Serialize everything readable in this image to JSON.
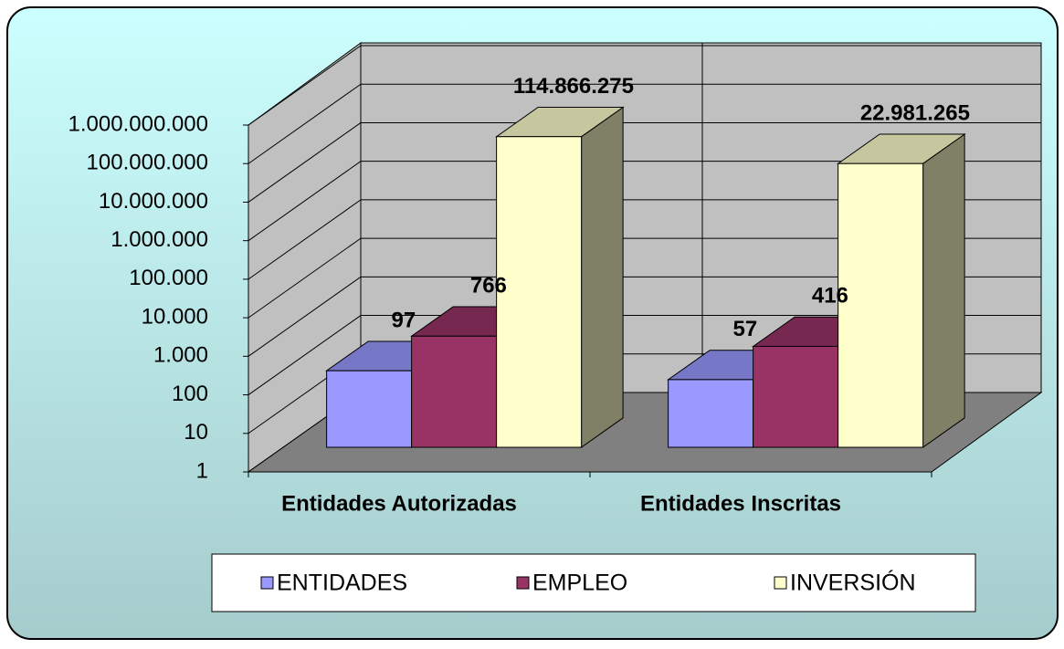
{
  "chart_data": {
    "type": "bar3d",
    "categories": [
      "Entidades Autorizadas",
      "Entidades Inscritas"
    ],
    "series": [
      {
        "name": "ENTIDADES",
        "color": "#9999ff",
        "values": [
          97,
          57
        ]
      },
      {
        "name": "EMPLEO",
        "color": "#993366",
        "values": [
          766,
          416
        ]
      },
      {
        "name": "INVERSIÓN",
        "color": "#ffffcc",
        "values": [
          114866275,
          22981265
        ],
        "value_labels": [
          "114.866.275",
          "22.981.265"
        ]
      }
    ],
    "ylim": [
      1,
      1000000000
    ],
    "yticks": [
      1,
      10,
      100,
      {
        "value": 1000,
        "label": "1.000"
      },
      {
        "value": 10000,
        "label": "10.000"
      },
      {
        "value": 100000,
        "label": "100.000"
      },
      {
        "value": 1000000,
        "label": "1.000.000"
      },
      {
        "value": 10000000,
        "label": "10.000.000"
      },
      {
        "value": 100000000,
        "label": "100.000.000"
      },
      {
        "value": 1000000000,
        "label": "1.000.000.000"
      }
    ],
    "log_scale": true,
    "grid": true,
    "legend": "bottom"
  }
}
